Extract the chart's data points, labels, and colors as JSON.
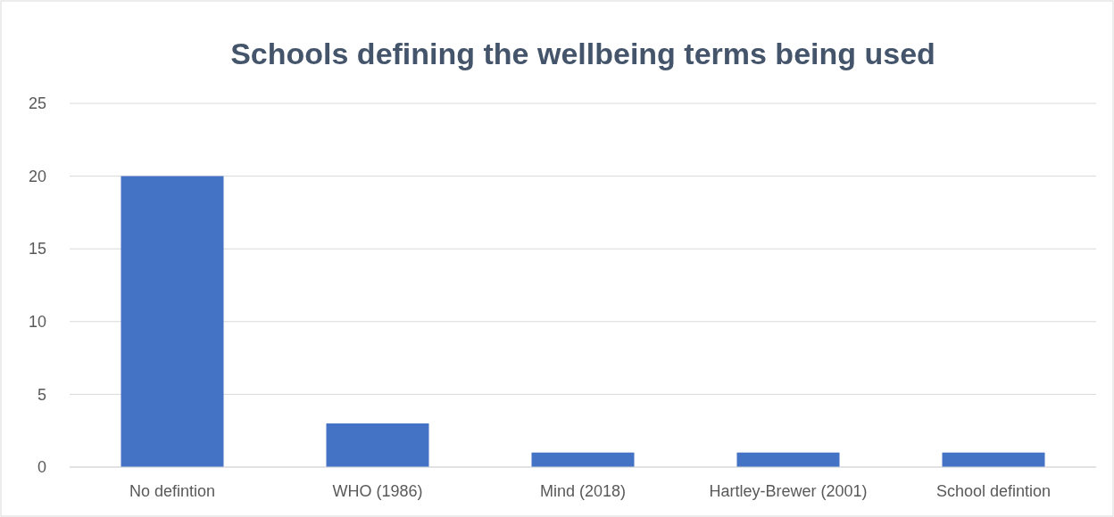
{
  "chart_data": {
    "type": "bar",
    "title": "Schools defining the wellbeing terms being used",
    "categories": [
      "No defintion",
      "WHO (1986)",
      "Mind (2018)",
      "Hartley-Brewer (2001)",
      "School defintion"
    ],
    "values": [
      20,
      3,
      1,
      1,
      1
    ],
    "color": "#4472c4",
    "ylim": [
      0,
      25
    ],
    "yticks": [
      0,
      5,
      10,
      15,
      20,
      25
    ],
    "grid": "y"
  }
}
